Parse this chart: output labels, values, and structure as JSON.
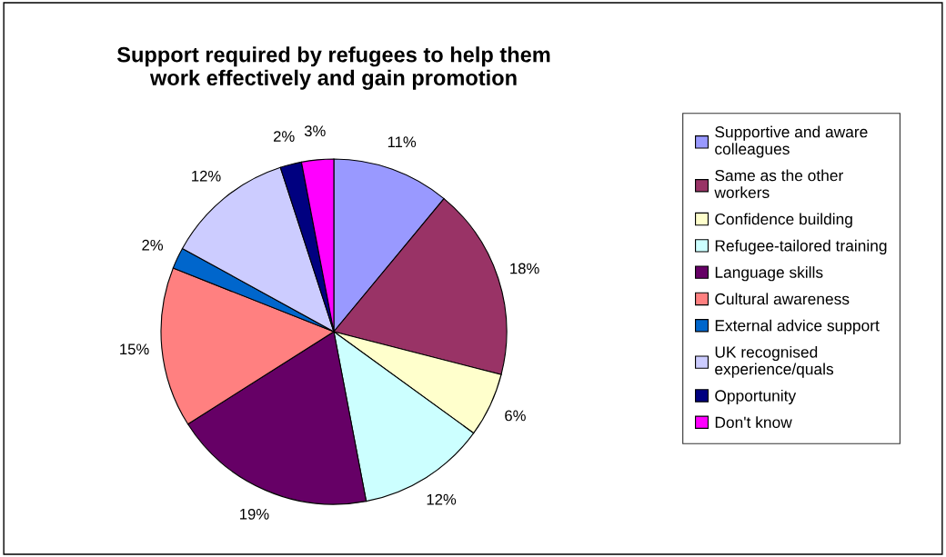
{
  "chart_data": {
    "type": "pie",
    "title": "Support required by refugees to help them\nwork effectively and gain promotion",
    "categories": [
      "Supportive and aware\ncolleagues",
      "Same as the other\nworkers",
      "Confidence building",
      "Refugee-tailored training",
      "Language skills",
      "Cultural awareness",
      "External advice support",
      "UK recognised\nexperience/quals",
      "Opportunity",
      "Don't know"
    ],
    "values": [
      11,
      18,
      6,
      12,
      19,
      15,
      2,
      12,
      2,
      3
    ],
    "value_labels": [
      "11%",
      "18%",
      "6%",
      "12%",
      "19%",
      "15%",
      "2%",
      "12%",
      "2%",
      "3%"
    ],
    "colors": [
      "#9999ff",
      "#993366",
      "#ffffcc",
      "#ccffff",
      "#660066",
      "#ff8080",
      "#0066cc",
      "#ccccff",
      "#000080",
      "#ff00ff"
    ],
    "legend": "right"
  }
}
